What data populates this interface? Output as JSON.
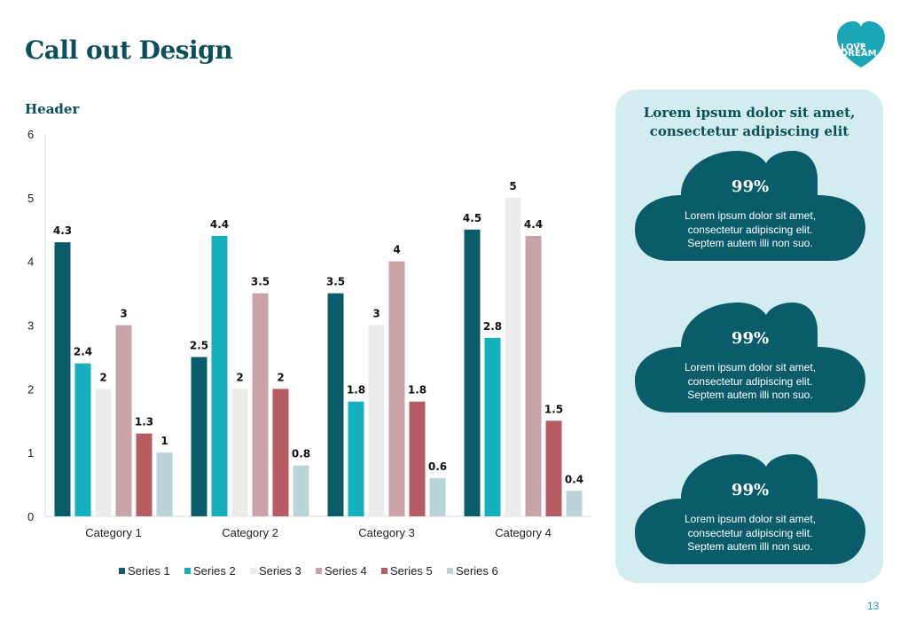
{
  "page": {
    "title": "Call out Design",
    "header": "Header",
    "page_number": "13",
    "logo": {
      "line1": "LOVE",
      "line2": "TO",
      "line3": "DREAM"
    }
  },
  "panel": {
    "title_line1": "Lorem ipsum dolor sit amet,",
    "title_line2": "consectetur adipiscing elit",
    "callouts": [
      {
        "value": "99%",
        "line1": "Lorem ipsum dolor sit amet,",
        "line2": "consectetur adipiscing elit.",
        "line3": "Septem autem illi non suo."
      },
      {
        "value": "99%",
        "line1": "Lorem ipsum dolor sit amet,",
        "line2": "consectetur adipiscing elit.",
        "line3": "Septem autem illi non suo."
      },
      {
        "value": "99%",
        "line1": "Lorem ipsum dolor sit amet,",
        "line2": "consectetur adipiscing elit.",
        "line3": "Septem autem illi non suo."
      }
    ]
  },
  "colors": {
    "brand": "#0b4f5c",
    "accent": "#1aa6b7",
    "panel_bg": "#d2ecef"
  },
  "chart_data": {
    "type": "bar",
    "categories": [
      "Category 1",
      "Category 2",
      "Category 3",
      "Category 4"
    ],
    "series": [
      {
        "name": "Series 1",
        "color": "#0b5c6a",
        "values": [
          4.3,
          2.5,
          3.5,
          4.5
        ]
      },
      {
        "name": "Series 2",
        "color": "#15b0be",
        "values": [
          2.4,
          4.4,
          1.8,
          2.8
        ]
      },
      {
        "name": "Series 3",
        "color": "#eeeceb",
        "values": [
          2,
          2,
          3,
          5
        ]
      },
      {
        "name": "Series 4",
        "color": "#c9a3a7",
        "values": [
          3,
          3.5,
          4,
          4.4
        ]
      },
      {
        "name": "Series 5",
        "color": "#b85c63",
        "values": [
          1.3,
          2,
          1.8,
          1.5
        ]
      },
      {
        "name": "Series 6",
        "color": "#b9d5d7",
        "values": [
          1,
          0.8,
          0.6,
          0.4
        ]
      }
    ],
    "ylim": [
      0,
      6
    ],
    "yticks": [
      "0",
      "1",
      "2",
      "3",
      "4",
      "5",
      "6"
    ],
    "legend_position": "bottom",
    "grid": false
  }
}
